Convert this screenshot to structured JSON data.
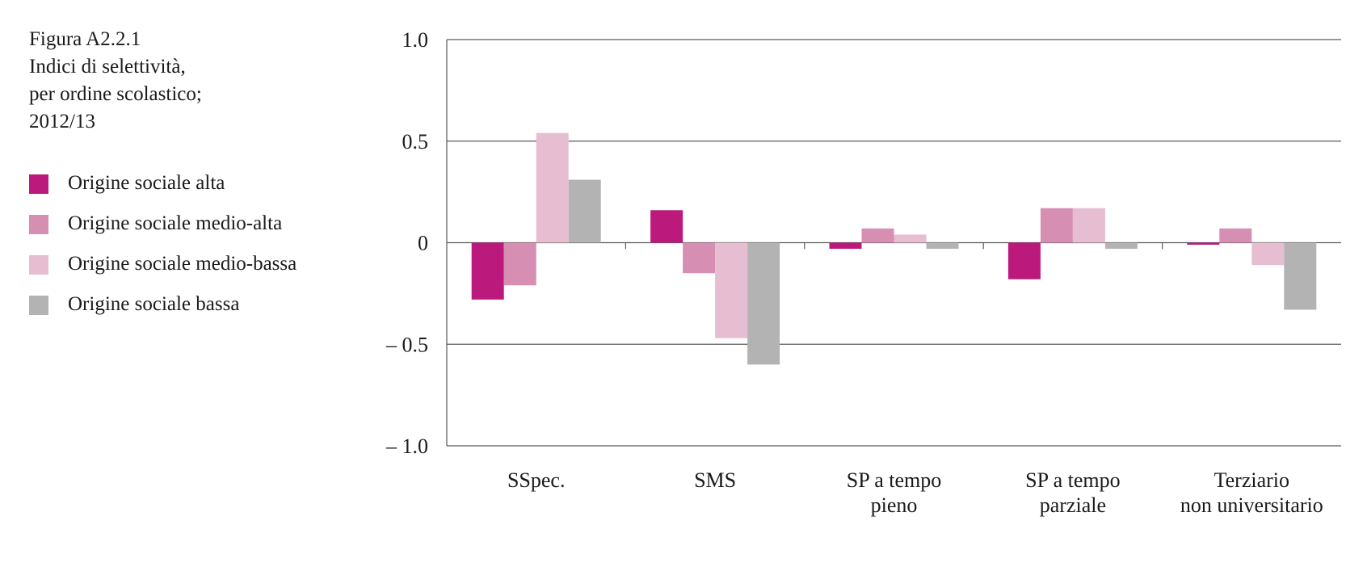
{
  "figure": {
    "title_lines": [
      "Figura A2.2.1",
      "Indici di selettività,",
      "per ordine scolastico;",
      "2012/13"
    ]
  },
  "chart_data": {
    "type": "bar",
    "categories": [
      [
        "SSpec."
      ],
      [
        "SMS"
      ],
      [
        "SP a tempo",
        "pieno"
      ],
      [
        "SP a tempo",
        "parziale"
      ],
      [
        "Terziario",
        "non universitario"
      ]
    ],
    "series": [
      {
        "name": "Origine sociale alta",
        "color": "#bb1a7c",
        "values": [
          -0.28,
          0.16,
          -0.03,
          -0.18,
          -0.01
        ]
      },
      {
        "name": "Origine sociale medio-alta",
        "color": "#d68fb2",
        "values": [
          -0.21,
          -0.15,
          0.07,
          0.17,
          0.07
        ]
      },
      {
        "name": "Origine sociale medio-bassa",
        "color": "#e7bdd1",
        "values": [
          0.54,
          -0.47,
          0.04,
          0.17,
          -0.11
        ]
      },
      {
        "name": "Origine sociale bassa",
        "color": "#b3b3b3",
        "values": [
          0.31,
          -0.6,
          -0.03,
          -0.03,
          -0.33
        ]
      }
    ],
    "ylim": [
      -1.0,
      1.0
    ],
    "yticks": [
      1.0,
      0.5,
      0,
      -0.5,
      -1.0
    ],
    "ytick_labels": [
      "1.0",
      "0.5",
      "0",
      "– 0.5",
      "– 1.0"
    ],
    "grid": true,
    "legend_position": "left"
  }
}
